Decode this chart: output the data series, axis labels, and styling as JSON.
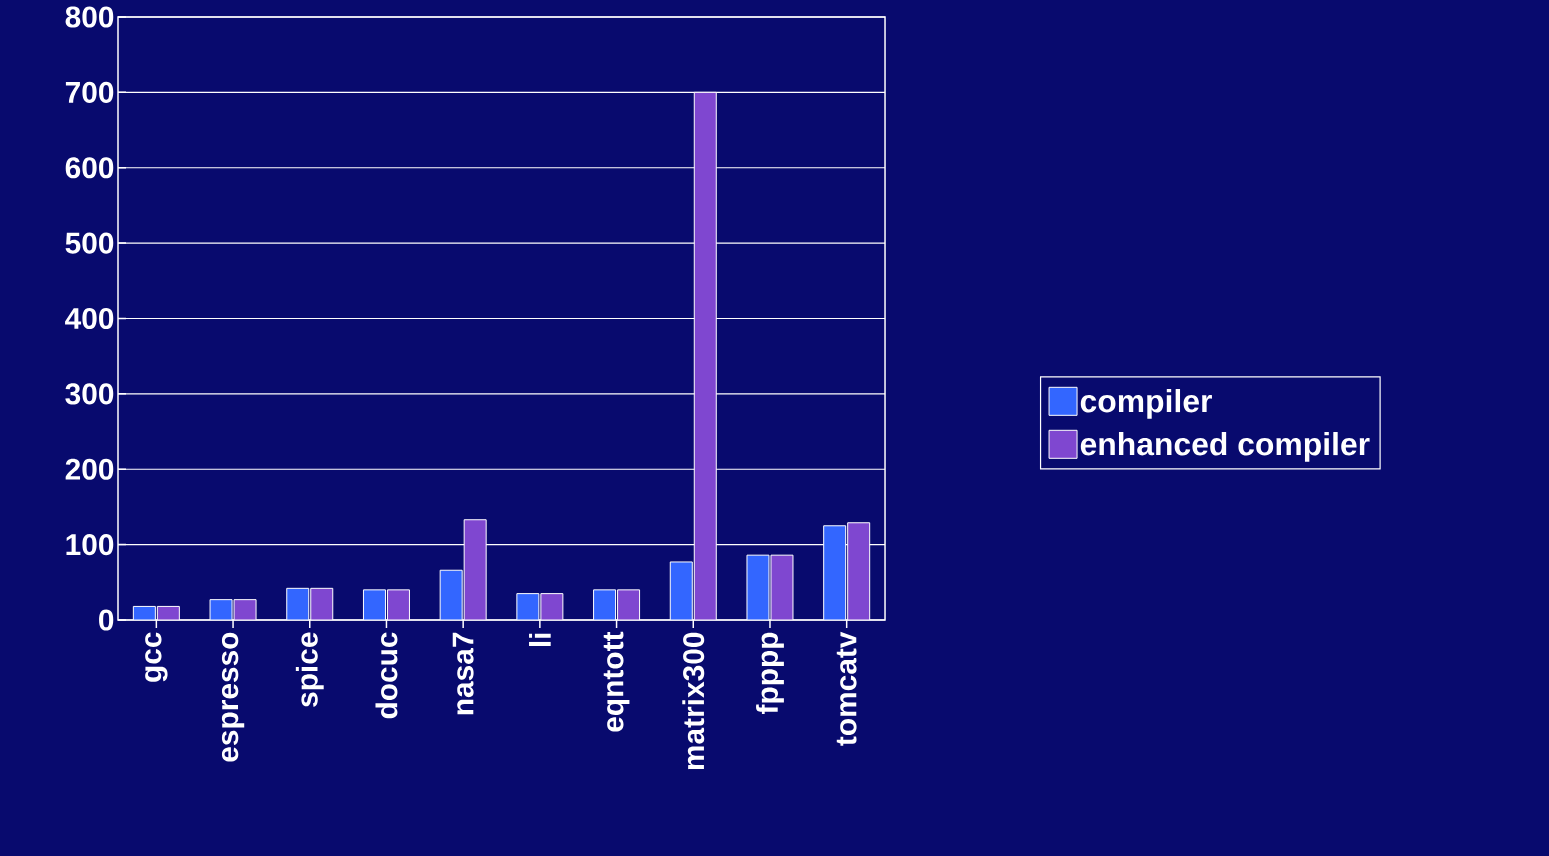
{
  "chart_data": {
    "type": "bar",
    "categories": [
      "gcc",
      "espresso",
      "spice",
      "docuc",
      "nasa7",
      "li",
      "eqntott",
      "matrix300",
      "fpppp",
      "tomcatv"
    ],
    "series": [
      {
        "name": "compiler",
        "color": "#3366ff",
        "values": [
          18,
          27,
          42,
          40,
          66,
          35,
          40,
          77,
          86,
          125
        ]
      },
      {
        "name": "enhanced compiler",
        "color": "#7f47d0",
        "values": [
          18,
          27,
          42,
          40,
          133,
          35,
          40,
          700,
          86,
          129
        ]
      }
    ],
    "ylim": [
      0,
      800
    ],
    "yticks": [
      0,
      100,
      200,
      300,
      400,
      500,
      600,
      700,
      800
    ],
    "grid": "y",
    "legend": "right"
  }
}
